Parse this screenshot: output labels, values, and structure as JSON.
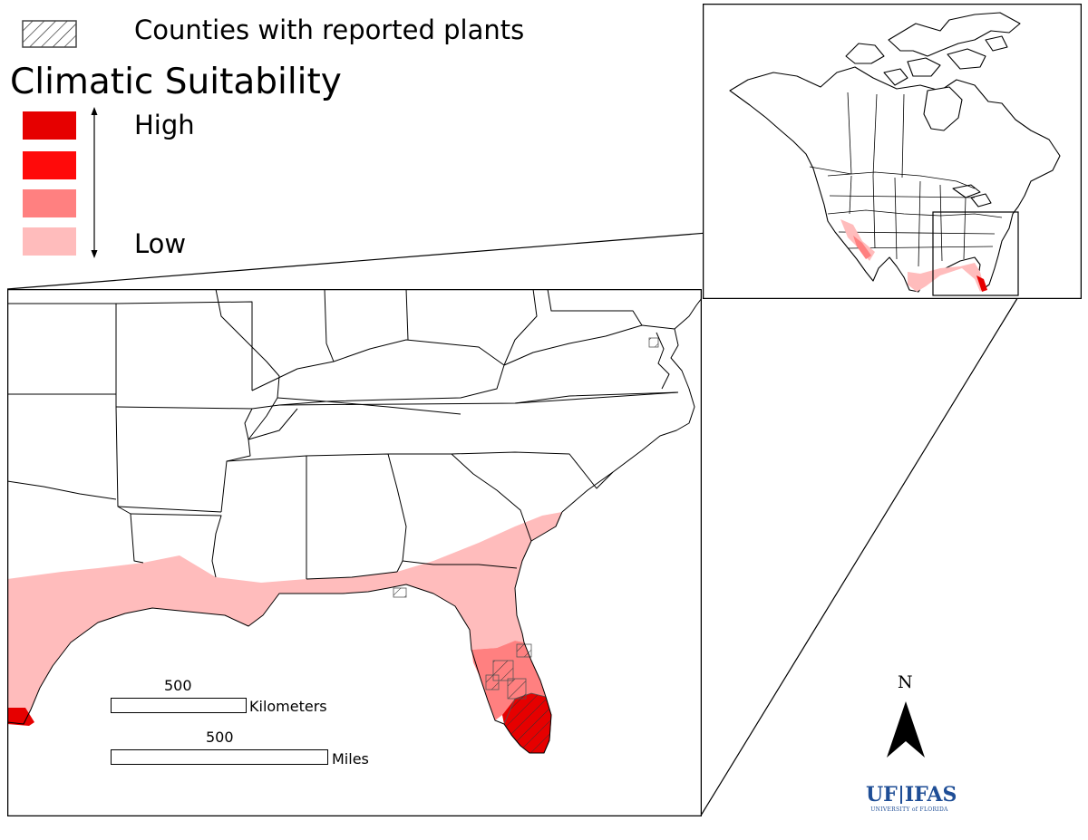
{
  "legend": {
    "reported_label": "Counties with reported plants",
    "title": "Climatic Suitability",
    "high_label": "High",
    "low_label": "Low",
    "classes": [
      {
        "level": "high",
        "color": "#e60000"
      },
      {
        "level": "medium-high",
        "color": "#ff0a0a"
      },
      {
        "level": "medium-low",
        "color": "#ff8080"
      },
      {
        "level": "low",
        "color": "#ffbcbc"
      }
    ]
  },
  "scale_bars": {
    "kilometers": {
      "value": "500",
      "unit": "Kilometers"
    },
    "miles": {
      "value": "500",
      "unit": "Miles"
    }
  },
  "north_arrow": {
    "label": "N"
  },
  "logo": {
    "line1_a": "UF",
    "line1_b": "IFAS",
    "line2": "UNIVERSITY of FLORIDA"
  },
  "colors": {
    "low": "#ffbcbc",
    "medium": "#ff8080",
    "high": "#e60000",
    "logo_blue": "#1f4e96"
  }
}
